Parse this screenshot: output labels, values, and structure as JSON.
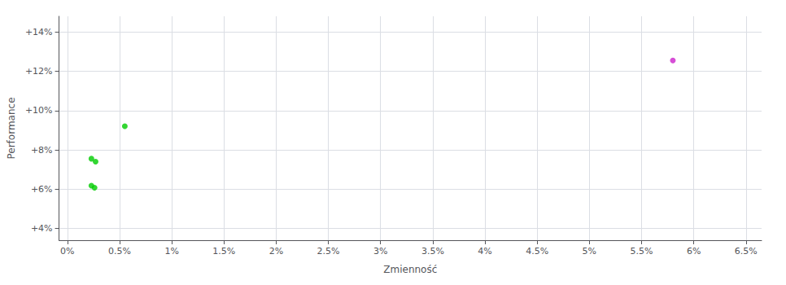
{
  "chart_data": {
    "type": "scatter",
    "xlabel": "Zmienność",
    "ylabel": "Performance",
    "xlim": [
      -0.0008,
      0.0665
    ],
    "ylim": [
      0.034,
      0.148
    ],
    "xticks": [
      {
        "value": 0.0,
        "label": "0%"
      },
      {
        "value": 0.005,
        "label": "0.5%"
      },
      {
        "value": 0.01,
        "label": "1%"
      },
      {
        "value": 0.015,
        "label": "1.5%"
      },
      {
        "value": 0.02,
        "label": "2%"
      },
      {
        "value": 0.025,
        "label": "2.5%"
      },
      {
        "value": 0.03,
        "label": "3%"
      },
      {
        "value": 0.035,
        "label": "3.5%"
      },
      {
        "value": 0.04,
        "label": "4%"
      },
      {
        "value": 0.045,
        "label": "4.5%"
      },
      {
        "value": 0.05,
        "label": "5%"
      },
      {
        "value": 0.055,
        "label": "5.5%"
      },
      {
        "value": 0.06,
        "label": "6%"
      },
      {
        "value": 0.065,
        "label": "6.5%"
      }
    ],
    "yticks": [
      {
        "value": 0.04,
        "label": "+4%"
      },
      {
        "value": 0.06,
        "label": "+6%"
      },
      {
        "value": 0.08,
        "label": "+8%"
      },
      {
        "value": 0.1,
        "label": "+10%"
      },
      {
        "value": 0.12,
        "label": "+12%"
      },
      {
        "value": 0.14,
        "label": "+14%"
      }
    ],
    "grid": true,
    "series": [
      {
        "color": "#00cc00",
        "x": [
          0.0023,
          0.0027,
          0.0023,
          0.0026,
          0.0055
        ],
        "y": [
          0.0755,
          0.074,
          0.0618,
          0.0607,
          0.092
        ]
      },
      {
        "color": "#cc22cc",
        "x": [
          0.058
        ],
        "y": [
          0.1255
        ]
      }
    ]
  }
}
